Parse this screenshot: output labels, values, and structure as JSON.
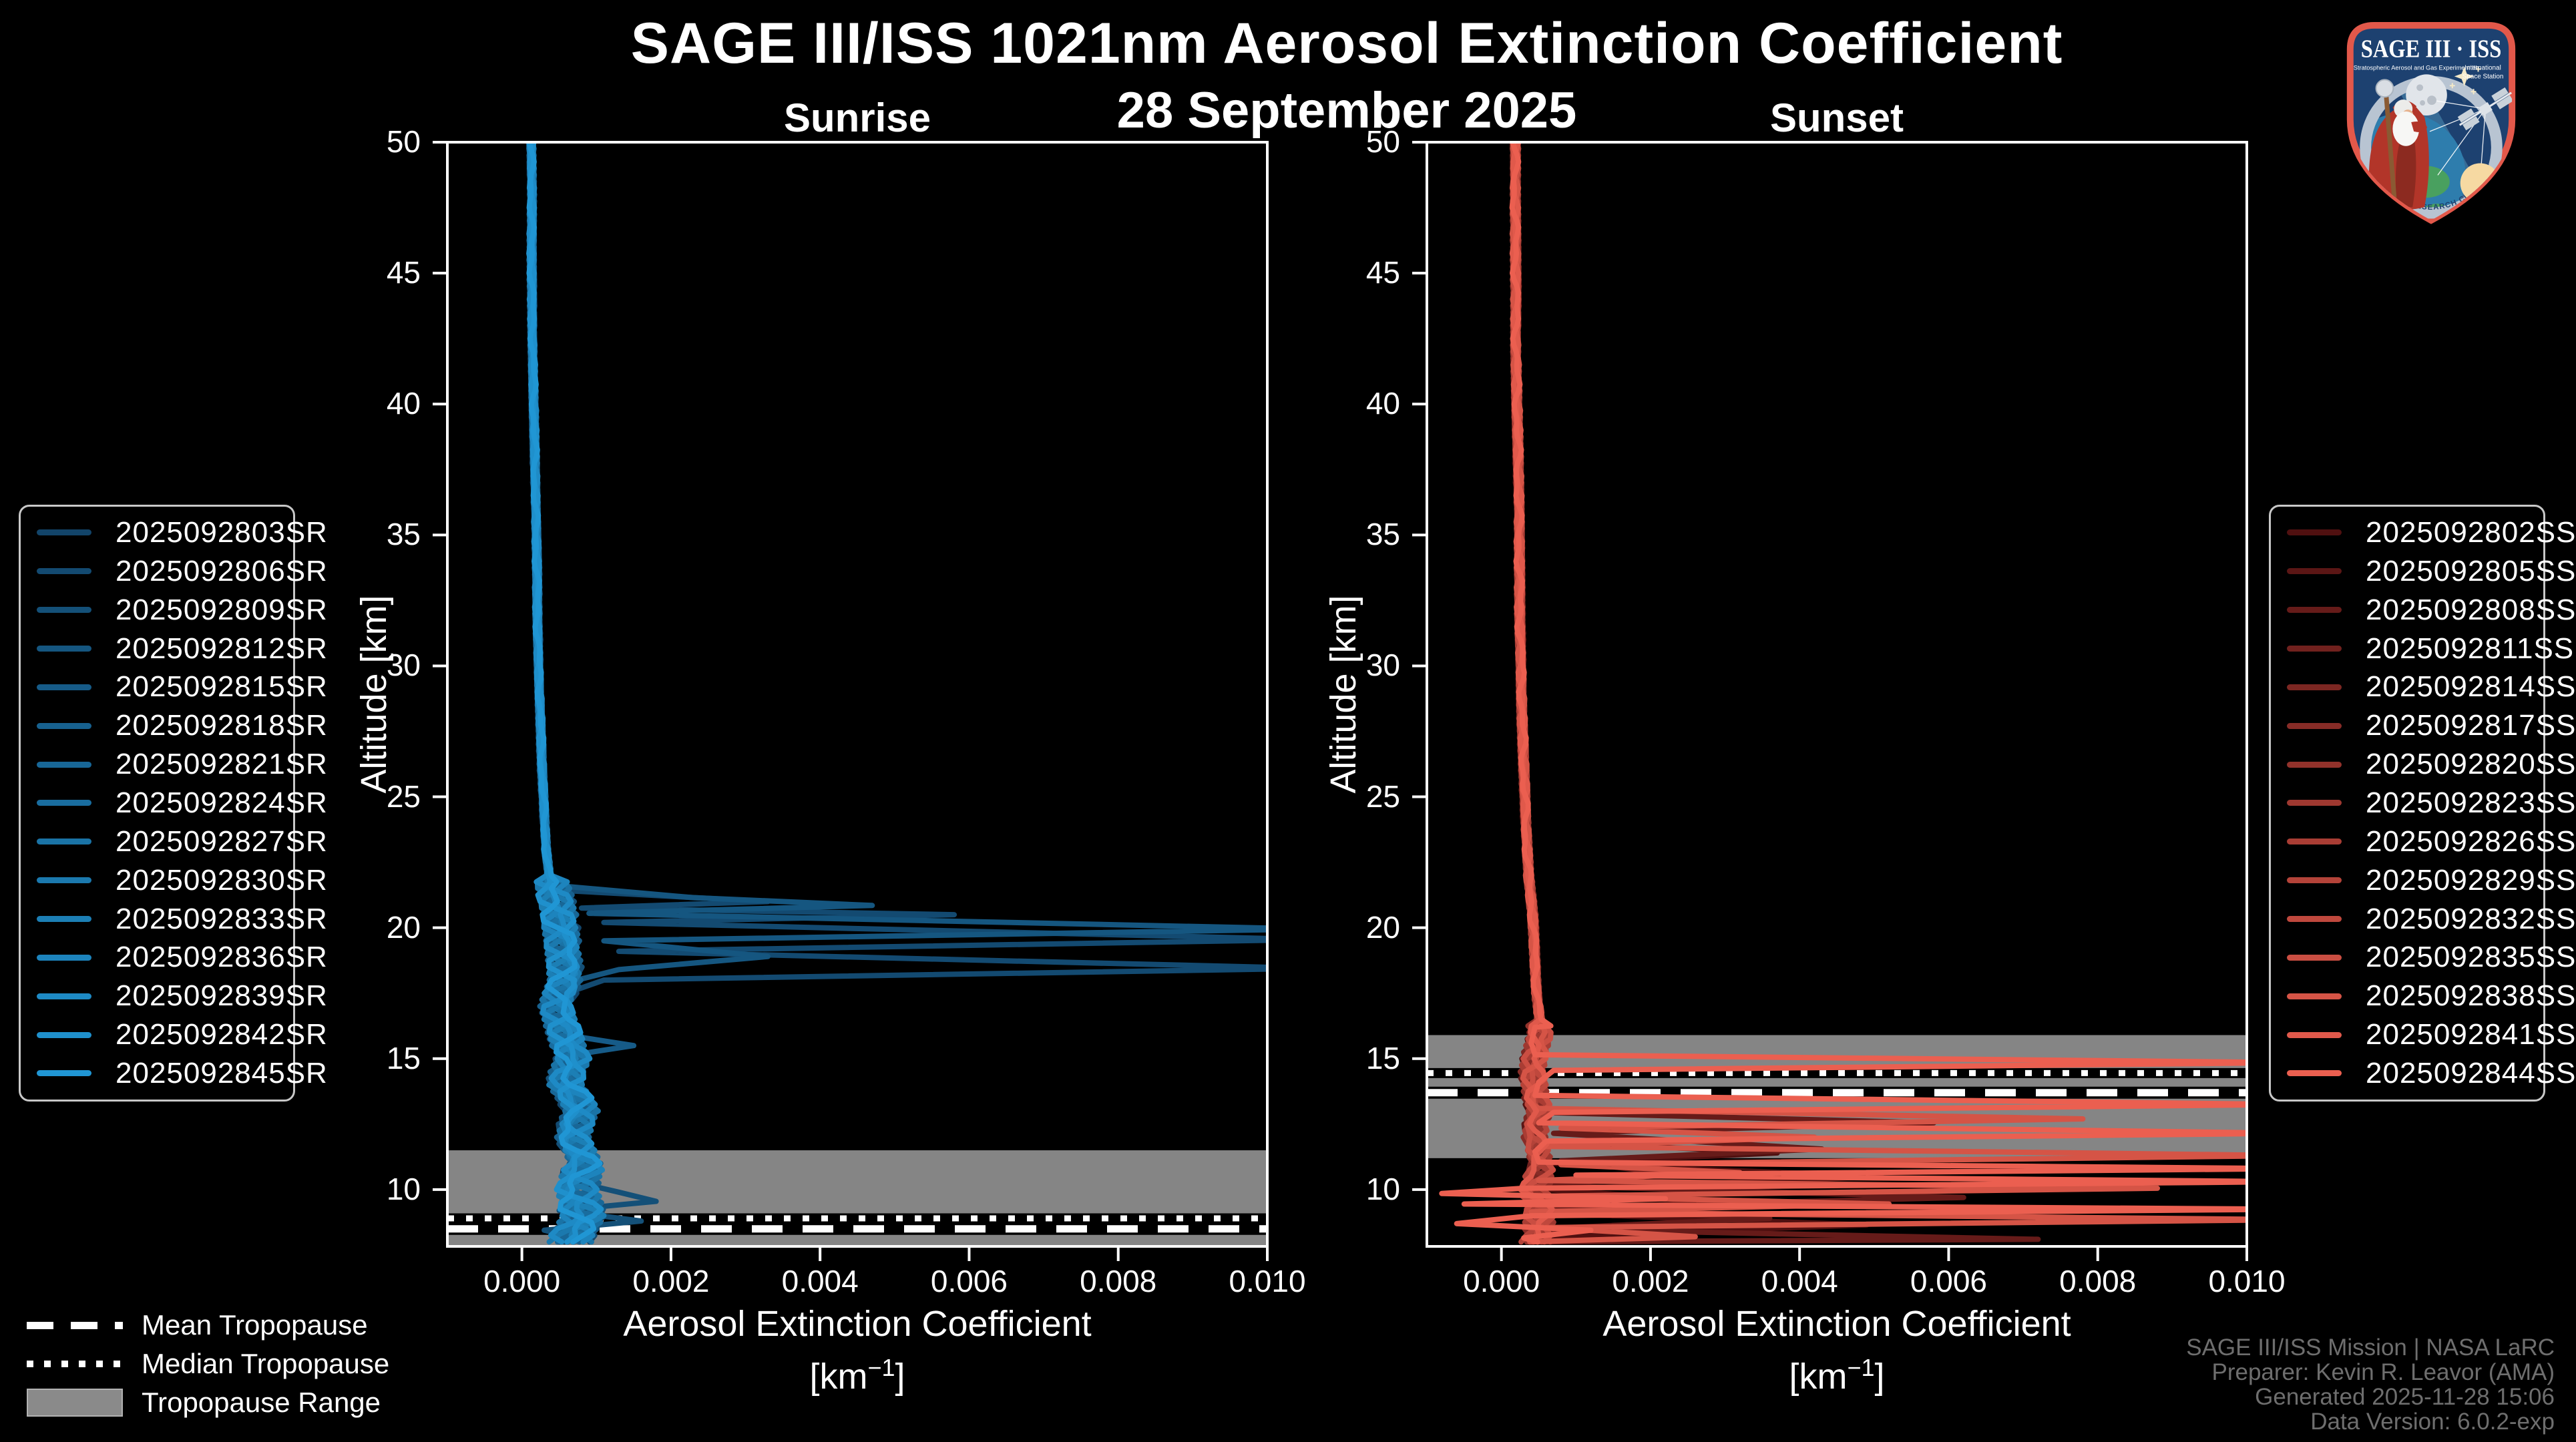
{
  "header": {
    "title": "SAGE III/ISS 1021nm Aerosol Extinction Coefficient",
    "date": "28 September 2025"
  },
  "chart_data": [
    {
      "type": "line",
      "title": "Sunrise",
      "ylabel": "Altitude [km]",
      "xlabel": "Aerosol Extinction Coefficient",
      "units_prefix": "[km",
      "units_sup": "−1",
      "units_suffix": "]",
      "xlim": [
        -0.001,
        0.01
      ],
      "ylim": [
        7.83,
        50.0
      ],
      "xticks": {
        "values": [
          0.0,
          0.002,
          0.004,
          0.006,
          0.008,
          0.01
        ],
        "labels": [
          "0.000",
          "0.002",
          "0.004",
          "0.006",
          "0.008",
          "0.010"
        ]
      },
      "yticks": {
        "values": [
          10,
          15,
          20,
          25,
          30,
          35,
          40,
          45,
          50
        ],
        "labels": [
          "10",
          "15",
          "20",
          "25",
          "30",
          "35",
          "40",
          "45",
          "50"
        ]
      },
      "tropopause": {
        "range_km": [
          7.83,
          11.5
        ],
        "mean_km": 8.5,
        "median_km": 8.9
      },
      "bundle": {
        "alts": [
          50,
          48,
          46,
          44,
          42,
          40,
          38,
          36,
          34,
          32,
          30,
          28,
          26,
          24,
          23,
          22,
          21.5,
          21,
          20.5,
          20,
          19.5,
          19,
          18.5,
          18,
          17.5,
          17,
          16.5,
          16,
          15.5,
          15,
          14.5,
          14,
          13.5,
          13,
          12.5,
          12,
          11.5,
          11,
          10.5,
          10,
          9.5,
          9,
          8.5,
          8
        ],
        "x": [
          0.00012,
          0.00013,
          0.00013,
          0.00014,
          0.00015,
          0.00016,
          0.00017,
          0.00018,
          0.0002,
          0.00021,
          0.00023,
          0.00025,
          0.00027,
          0.0003,
          0.00032,
          0.00036,
          0.0004,
          0.00045,
          0.0005,
          0.00052,
          0.00055,
          0.00058,
          0.0006,
          0.00062,
          0.00055,
          0.0005,
          0.00055,
          0.0006,
          0.00065,
          0.0007,
          0.00062,
          0.00058,
          0.0007,
          0.00078,
          0.0007,
          0.00065,
          0.00072,
          0.0008,
          0.00072,
          0.0007,
          0.00075,
          0.0008,
          0.0007,
          0.00065
        ],
        "jitter_hi": 4e-05,
        "jitter_lo": 0.00026,
        "jitter_split_alt": 22
      },
      "series": [
        {
          "name": "2025092803SR",
          "color": "#124469"
        },
        {
          "name": "2025092806SR",
          "color": "#134a71"
        },
        {
          "name": "2025092809SR",
          "color": "#145078"
        },
        {
          "name": "2025092812SR",
          "color": "#155680"
        },
        {
          "name": "2025092815SR",
          "color": "#165b88"
        },
        {
          "name": "2025092818SR",
          "color": "#17618f"
        },
        {
          "name": "2025092821SR",
          "color": "#186797"
        },
        {
          "name": "2025092824SR",
          "color": "#196d9f"
        },
        {
          "name": "2025092827SR",
          "color": "#1a73a6"
        },
        {
          "name": "2025092830SR",
          "color": "#1b79ae"
        },
        {
          "name": "2025092833SR",
          "color": "#1c7fb5"
        },
        {
          "name": "2025092836SR",
          "color": "#1d84bd"
        },
        {
          "name": "2025092839SR",
          "color": "#1e8ac5"
        },
        {
          "name": "2025092842SR",
          "color": "#1f90cc"
        },
        {
          "name": "2025092845SR",
          "color": "#2096d4"
        }
      ],
      "spikes": {
        "1": [
          [
            22.0,
            0.0004
          ],
          [
            21.4,
            0.0007
          ],
          [
            21.0,
            0.0033
          ],
          [
            20.75,
            0.0008
          ],
          [
            20.5,
            0.0058
          ],
          [
            20.2,
            0.0011
          ],
          [
            19.55,
            0.0106
          ],
          [
            19.1,
            0.0013
          ],
          [
            18.45,
            0.0106
          ],
          [
            18.0,
            0.0011
          ],
          [
            17.5,
            0.0006
          ]
        ],
        "3": [
          [
            21.6,
            0.0005
          ],
          [
            21.15,
            0.0023
          ],
          [
            20.85,
            0.0047
          ],
          [
            20.55,
            0.0009
          ],
          [
            19.95,
            0.0106
          ],
          [
            19.5,
            0.0011
          ],
          [
            18.9,
            0.0033
          ],
          [
            18.4,
            0.0013
          ],
          [
            17.9,
            0.0006
          ]
        ],
        "2": [
          [
            10.3,
            0.0007
          ],
          [
            9.9,
            0.0013
          ],
          [
            9.55,
            0.0018
          ],
          [
            9.2,
            0.0005
          ],
          [
            8.8,
            0.0016
          ],
          [
            8.45,
            0.0003
          ],
          [
            8.1,
            0.0008
          ]
        ],
        "4": [
          [
            15.9,
            0.0006
          ],
          [
            15.5,
            0.0015
          ],
          [
            15.15,
            0.0007
          ]
        ]
      }
    },
    {
      "type": "line",
      "title": "Sunset",
      "ylabel": "Altitude [km]",
      "xlabel": "Aerosol Extinction Coefficient",
      "units_prefix": "[km",
      "units_sup": "−1",
      "units_suffix": "]",
      "xlim": [
        -0.001,
        0.01
      ],
      "ylim": [
        7.83,
        50.0
      ],
      "xticks": {
        "values": [
          0.0,
          0.002,
          0.004,
          0.006,
          0.008,
          0.01
        ],
        "labels": [
          "0.000",
          "0.002",
          "0.004",
          "0.006",
          "0.008",
          "0.010"
        ]
      },
      "yticks": {
        "values": [
          10,
          15,
          20,
          25,
          30,
          35,
          40,
          45,
          50
        ],
        "labels": [
          "10",
          "15",
          "20",
          "25",
          "30",
          "35",
          "40",
          "45",
          "50"
        ]
      },
      "tropopause": {
        "range_km": [
          11.2,
          15.9
        ],
        "mean_km": 13.7,
        "median_km": 14.45
      },
      "bundle": {
        "alts": [
          50,
          48,
          46,
          44,
          42,
          40,
          38,
          36,
          34,
          32,
          30,
          28,
          26,
          24,
          23,
          22,
          21.5,
          21,
          20.5,
          20,
          19.5,
          19,
          18.5,
          18,
          17.5,
          17,
          16.5,
          16,
          15.5,
          15,
          14.5,
          14,
          13.5,
          13,
          12.5,
          12,
          11.5,
          11,
          10.5,
          10,
          9.5,
          9,
          8.5,
          8
        ],
        "x": [
          0.00018,
          0.00018,
          0.00019,
          0.0002,
          0.0002,
          0.00021,
          0.00022,
          0.00023,
          0.00024,
          0.00025,
          0.00027,
          0.00028,
          0.0003,
          0.00032,
          0.00034,
          0.00036,
          0.00038,
          0.0004,
          0.00042,
          0.00043,
          0.00044,
          0.00045,
          0.00046,
          0.00047,
          0.00048,
          0.0005,
          0.00052,
          0.00055,
          0.0005,
          0.00045,
          0.00042,
          0.00044,
          0.00046,
          0.0005,
          0.00045,
          0.00042,
          0.00045,
          0.0005,
          0.00045,
          0.00042,
          0.00046,
          0.0005,
          0.00048,
          0.00046
        ],
        "jitter_hi": 5e-05,
        "jitter_lo": 0.00018,
        "jitter_split_alt": 16.5
      },
      "series": [
        {
          "name": "2025092802SS",
          "color": "#501010"
        },
        {
          "name": "2025092805SS",
          "color": "#5b1615"
        },
        {
          "name": "2025092808SS",
          "color": "#661b19"
        },
        {
          "name": "2025092811SS",
          "color": "#71211e"
        },
        {
          "name": "2025092814SS",
          "color": "#7c2722"
        },
        {
          "name": "2025092817SS",
          "color": "#872c27"
        },
        {
          "name": "2025092820SS",
          "color": "#92322b"
        },
        {
          "name": "2025092823SS",
          "color": "#9e3830"
        },
        {
          "name": "2025092826SS",
          "color": "#a93d34"
        },
        {
          "name": "2025092829SS",
          "color": "#b44339"
        },
        {
          "name": "2025092832SS",
          "color": "#bf483d"
        },
        {
          "name": "2025092835SS",
          "color": "#ca4e42"
        },
        {
          "name": "2025092838SS",
          "color": "#d55446"
        },
        {
          "name": "2025092841SS",
          "color": "#e0594b"
        },
        {
          "name": "2025092844SS",
          "color": "#eb5f50"
        }
      ],
      "spikes": {
        "0": [
          [
            11.85,
            0.0005
          ],
          [
            11.4,
            0.0037
          ],
          [
            11.0,
            0.0007
          ],
          [
            10.5,
            0.0051
          ],
          [
            10.0,
            0.0006
          ],
          [
            9.55,
            0.0029
          ],
          [
            9.1,
            0.0005
          ],
          [
            8.65,
            0.0049
          ],
          [
            8.2,
            0.0006
          ]
        ],
        "2": [
          [
            12.95,
            0.0005
          ],
          [
            12.55,
            0.0058
          ],
          [
            12.15,
            0.0007
          ],
          [
            11.55,
            0.0043
          ],
          [
            11.1,
            0.0008
          ],
          [
            10.6,
            0.0023
          ],
          [
            10.15,
            0.0006
          ],
          [
            9.7,
            0.0062
          ],
          [
            9.3,
            0.0006
          ],
          [
            8.9,
            0.0036
          ],
          [
            8.5,
            0.0005
          ],
          [
            8.1,
            0.0072
          ]
        ],
        "12": [
          [
            13.1,
            0.0005
          ],
          [
            12.7,
            0.0078
          ],
          [
            12.35,
            0.0008
          ],
          [
            12.0,
            0.0042
          ],
          [
            11.65,
            0.0006
          ],
          [
            11.3,
            0.0106
          ],
          [
            10.95,
            0.0008
          ],
          [
            10.65,
            0.0032
          ],
          [
            10.35,
            0.0005
          ],
          [
            10.05,
            0.0088
          ],
          [
            9.75,
            0.0006
          ],
          [
            9.45,
            0.0052
          ],
          [
            9.15,
            0.0004
          ],
          [
            8.85,
            0.0106
          ],
          [
            8.55,
            0.0006
          ],
          [
            8.2,
            0.0026
          ]
        ],
        "14": [
          [
            16.2,
            0.00045
          ],
          [
            15.6,
            0.0004
          ],
          [
            15.15,
            0.00045
          ],
          [
            14.85,
            0.0106
          ],
          [
            14.55,
            0.0007
          ],
          [
            14.1,
            0.0005
          ],
          [
            13.6,
            0.00045
          ],
          [
            13.25,
            0.0106
          ],
          [
            12.95,
            0.0007
          ],
          [
            12.55,
            0.0005
          ],
          [
            12.15,
            0.0106
          ],
          [
            11.85,
            0.0006
          ],
          [
            11.45,
            0.00045
          ],
          [
            11.05,
            0.0005
          ],
          [
            10.8,
            0.0106
          ],
          [
            10.55,
            0.001
          ],
          [
            10.3,
            0.0106
          ],
          [
            10.05,
            0.0003
          ],
          [
            9.85,
            -0.0008
          ],
          [
            9.65,
            0.0022
          ],
          [
            9.45,
            -0.0005
          ],
          [
            9.25,
            0.0106
          ],
          [
            9.0,
            0.0004
          ],
          [
            8.7,
            -0.0006
          ],
          [
            8.45,
            0.0012
          ],
          [
            8.15,
            0.0003
          ]
        ]
      }
    }
  ],
  "styles": {
    "band_color": "#858585",
    "tropo_line_color": "#ffffff",
    "tropo_underlay_color": "#000000",
    "spine_color": "#ffffff",
    "curve_width": 8
  },
  "tropopause_legend": {
    "mean_label": "Mean Tropopause",
    "median_label": "Median Tropopause",
    "range_label": "Tropopause Range",
    "range_color": "#8a8a8a"
  },
  "footer": {
    "lines": [
      "SAGE III/ISS Mission | NASA LaRC",
      "Preparer: Kevin R. Leavor (AMA)",
      "Generated 2025-11-28 15:06",
      "Data Version: 6.0.2-exp"
    ]
  },
  "logo": {
    "title": "SAGE III · ISS",
    "subtitle_left": "Stratospheric Aerosol and Gas Experiment III",
    "subtitle_right_1": "International",
    "subtitle_right_2": "Space Station",
    "ring_text": "BALL • NASA LANGLEY RESEARCH CENTER • TAS-I • ESA",
    "border_color": "#e2584a",
    "bg_color": "#1d4170",
    "ring_color": "#b8c4d2"
  }
}
